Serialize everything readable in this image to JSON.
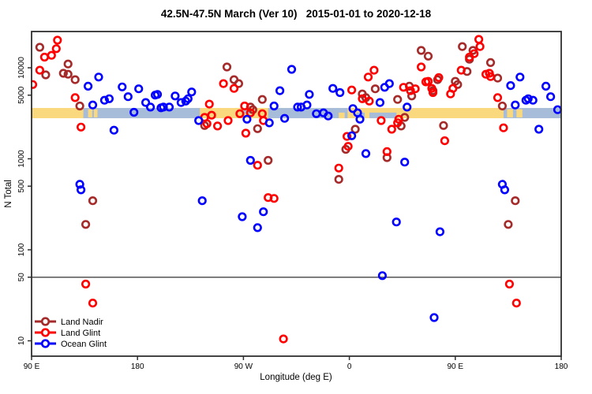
{
  "title": "42.5N-47.5N March (Ver 10)   2015-01-01 to 2020-12-18",
  "chart_data": {
    "type": "scatter",
    "title": "42.5N-47.5N March (Ver 10)   2015-01-01 to 2020-12-18",
    "xlabel": "Longitude (deg E)",
    "ylabel": "N Total",
    "x_axis": {
      "note": "longitude axis wraps eastward from 90E around the globe to 180 again (450 deg total)",
      "ticks": [
        90,
        180,
        270,
        360,
        450,
        540
      ],
      "tick_labels": [
        "90 E",
        "180",
        "90 W",
        "0",
        "90 E",
        "180"
      ],
      "range": [
        90,
        540
      ]
    },
    "y_axis": {
      "scale": "log",
      "ticks": [
        10,
        50,
        100,
        500,
        1000,
        5000,
        10000
      ],
      "tick_labels": [
        "10",
        "50",
        "100",
        "500",
        "1000",
        "5000",
        "10000"
      ],
      "range": [
        7,
        27000
      ]
    },
    "reference_line_y": 50,
    "land_ocean_band": {
      "description": "latitude-strip map band: land = yellow, ocean = blue",
      "n_range": [
        2790,
        3615
      ],
      "ocean_segments_lon": [
        [
          134,
          233
        ],
        [
          291,
          358.5
        ],
        [
          491,
          540
        ]
      ],
      "land_islands": [
        {
          "lon": [
            138,
            141.5
          ]
        },
        {
          "lon": [
            143,
            146
          ]
        },
        {
          "lon": [
            351,
            356
          ],
          "part": "lower"
        },
        {
          "lon": [
            494,
            499
          ]
        },
        {
          "lon": [
            502,
            507
          ]
        }
      ],
      "inland_water": [
        {
          "lon": [
            270,
            276
          ],
          "part": "upper"
        },
        {
          "lon": [
            366,
            373
          ],
          "part": "lower"
        },
        {
          "lon": [
            377,
            400
          ],
          "part": "lower"
        }
      ]
    },
    "legend": {
      "position": "bottom-left",
      "entries": [
        "Land Nadir",
        "Land Glint",
        "Ocean Glint"
      ]
    },
    "colors": {
      "land_nadir": "#A52A2A",
      "land_glint": "#FF0000",
      "ocean_glint": "#0000FF",
      "band_land": "#FAD87E",
      "band_ocean": "#A7BCD9",
      "reference_line": "#606060",
      "axis": "#303030"
    },
    "series": [
      {
        "name": "Land Nadir",
        "color_key": "land_nadir",
        "points": [
          [
            97,
            16800
          ],
          [
            102,
            8350
          ],
          [
            117,
            8700
          ],
          [
            121,
            11000
          ],
          [
            121,
            8500
          ],
          [
            127,
            7400
          ],
          [
            131,
            3800
          ],
          [
            142,
            346
          ],
          [
            136,
            190
          ],
          [
            237,
            2320
          ],
          [
            256,
            10200
          ],
          [
            262,
            7400
          ],
          [
            266,
            6700
          ],
          [
            276,
            3700
          ],
          [
            278,
            3460
          ],
          [
            282,
            2140
          ],
          [
            286,
            4490
          ],
          [
            291,
            960
          ],
          [
            351,
            594
          ],
          [
            357,
            1270
          ],
          [
            365,
            2110
          ],
          [
            371,
            5160
          ],
          [
            374,
            4700
          ],
          [
            382,
            5870
          ],
          [
            392,
            1030
          ],
          [
            401,
            4490
          ],
          [
            404,
            2290
          ],
          [
            407,
            2850
          ],
          [
            411,
            6270
          ],
          [
            413,
            4900
          ],
          [
            421,
            15500
          ],
          [
            427,
            13400
          ],
          [
            431,
            5600
          ],
          [
            435,
            7400
          ],
          [
            440,
            2320
          ],
          [
            450,
            7100
          ],
          [
            452,
            6540
          ],
          [
            456,
            17100
          ],
          [
            460,
            9100
          ],
          [
            462,
            12400
          ],
          [
            465,
            15500
          ],
          [
            480,
            11400
          ],
          [
            486,
            7700
          ],
          [
            490,
            3800
          ],
          [
            495,
            190
          ],
          [
            501,
            346
          ]
        ]
      },
      {
        "name": "Land Glint",
        "color_key": "land_glint",
        "points": [
          [
            112,
            20100
          ],
          [
            111,
            16200
          ],
          [
            101,
            13100
          ],
          [
            107,
            13700
          ],
          [
            97,
            9400
          ],
          [
            91,
            6540
          ],
          [
            127,
            4700
          ],
          [
            132,
            2230
          ],
          [
            136,
            42
          ],
          [
            142,
            26
          ],
          [
            241,
            3990
          ],
          [
            243,
            3010
          ],
          [
            237,
            2850
          ],
          [
            239,
            2430
          ],
          [
            248,
            2290
          ],
          [
            253,
            6700
          ],
          [
            257,
            2630
          ],
          [
            262,
            5930
          ],
          [
            267,
            3130
          ],
          [
            271,
            3800
          ],
          [
            272,
            1910
          ],
          [
            276,
            3200
          ],
          [
            282,
            850
          ],
          [
            286,
            3130
          ],
          [
            287,
            2630
          ],
          [
            291,
            375
          ],
          [
            296,
            367
          ],
          [
            304,
            10.5
          ],
          [
            351,
            790
          ],
          [
            358,
            1760
          ],
          [
            359,
            1370
          ],
          [
            362,
            5700
          ],
          [
            371,
            4570
          ],
          [
            376,
            7900
          ],
          [
            377,
            4300
          ],
          [
            381,
            9400
          ],
          [
            387,
            2630
          ],
          [
            392,
            1200
          ],
          [
            396,
            2110
          ],
          [
            401,
            2480
          ],
          [
            402,
            2720
          ],
          [
            406,
            6100
          ],
          [
            412,
            5600
          ],
          [
            416,
            5870
          ],
          [
            421,
            10200
          ],
          [
            425,
            7000
          ],
          [
            427,
            7100
          ],
          [
            430,
            5930
          ],
          [
            431,
            5340
          ],
          [
            436,
            7800
          ],
          [
            441,
            1580
          ],
          [
            446,
            5160
          ],
          [
            448,
            5930
          ],
          [
            455,
            9400
          ],
          [
            462,
            13100
          ],
          [
            466,
            14300
          ],
          [
            470,
            20500
          ],
          [
            471,
            17100
          ],
          [
            476,
            8500
          ],
          [
            479,
            8700
          ],
          [
            480,
            8000
          ],
          [
            486,
            4700
          ],
          [
            491,
            2190
          ],
          [
            496,
            42
          ],
          [
            502,
            26
          ]
        ]
      },
      {
        "name": "Ocean Glint",
        "color_key": "ocean_glint",
        "points": [
          [
            138,
            6270
          ],
          [
            147,
            7900
          ],
          [
            142,
            3900
          ],
          [
            152,
            4400
          ],
          [
            156,
            4570
          ],
          [
            167,
            6160
          ],
          [
            172,
            4810
          ],
          [
            181,
            5870
          ],
          [
            187,
            4150
          ],
          [
            191,
            3700
          ],
          [
            195,
            5010
          ],
          [
            200,
            3630
          ],
          [
            177,
            3240
          ],
          [
            160,
            2060
          ],
          [
            131,
            524
          ],
          [
            132,
            456
          ],
          [
            197,
            5100
          ],
          [
            212,
            4900
          ],
          [
            226,
            5420
          ],
          [
            217,
            4150
          ],
          [
            221,
            4300
          ],
          [
            223,
            4570
          ],
          [
            202,
            3700
          ],
          [
            207,
            3700
          ],
          [
            301,
            5600
          ],
          [
            296,
            3800
          ],
          [
            316,
            3700
          ],
          [
            311,
            9600
          ],
          [
            273,
            2720
          ],
          [
            292,
            2480
          ],
          [
            305,
            2780
          ],
          [
            232,
            2630
          ],
          [
            276,
            960
          ],
          [
            235,
            346
          ],
          [
            269,
            231
          ],
          [
            282,
            175
          ],
          [
            287,
            262
          ],
          [
            326,
            5100
          ],
          [
            346,
            5930
          ],
          [
            352,
            5340
          ],
          [
            319,
            3700
          ],
          [
            324,
            3900
          ],
          [
            332,
            3130
          ],
          [
            338,
            3200
          ],
          [
            342,
            2950
          ],
          [
            363,
            3560
          ],
          [
            367,
            3200
          ],
          [
            369,
            2720
          ],
          [
            362,
            1790
          ],
          [
            374,
            1140
          ],
          [
            407,
            920
          ],
          [
            390,
            6100
          ],
          [
            394,
            6700
          ],
          [
            386,
            4150
          ],
          [
            400,
            202
          ],
          [
            388,
            52
          ],
          [
            432,
            18
          ],
          [
            437,
            158
          ],
          [
            490,
            524
          ],
          [
            492,
            456
          ],
          [
            497,
            6370
          ],
          [
            505,
            7900
          ],
          [
            527,
            6270
          ],
          [
            531,
            4810
          ],
          [
            501,
            3900
          ],
          [
            510,
            4400
          ],
          [
            512,
            4570
          ],
          [
            516,
            4400
          ],
          [
            537,
            3460
          ],
          [
            521,
            2110
          ],
          [
            409,
            3700
          ]
        ]
      }
    ]
  }
}
